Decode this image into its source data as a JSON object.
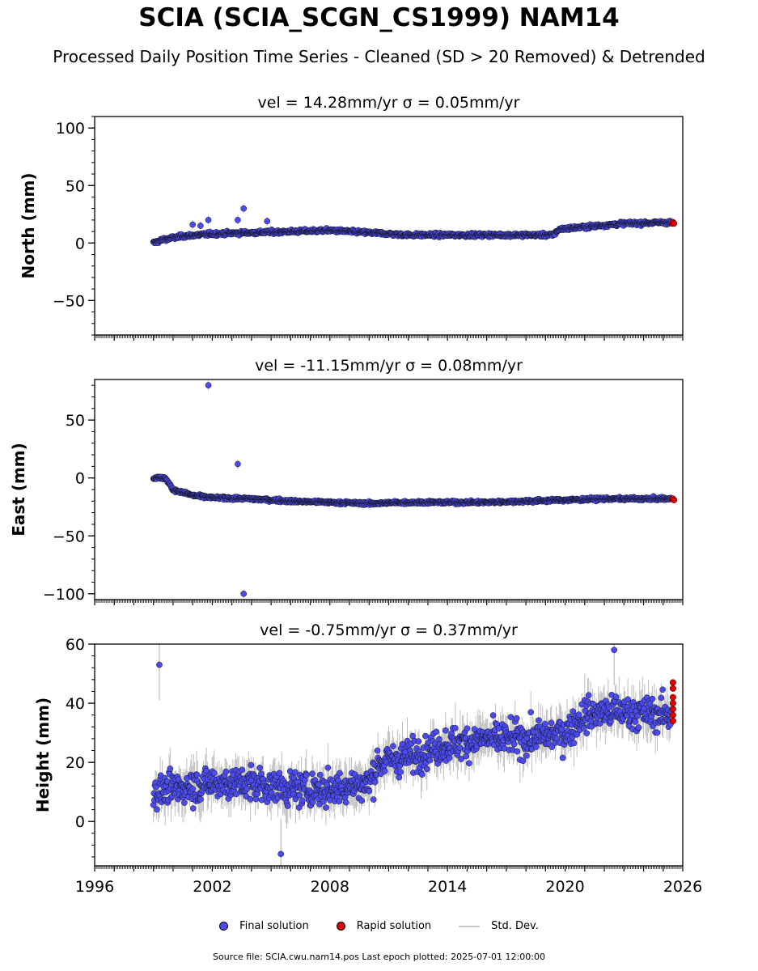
{
  "title": "SCIA (SCIA_SCGN_CS1999) NAM14",
  "subtitle": "Processed Daily Position Time Series - Cleaned (SD > 20 Removed) & Detrended",
  "legend": {
    "final_label": "Final solution",
    "rapid_label": "Rapid solution",
    "std_label": "Std. Dev."
  },
  "footer": "Source file: SCIA.cwu.nam14.pos  Last epoch plotted: 2025-07-01 12:00:00",
  "colors": {
    "final": "#4b4bf0",
    "rapid": "#e00000",
    "std": "#b0b0b0",
    "edge": "#000000"
  },
  "chart_data": [
    {
      "type": "scatter",
      "panel": "north",
      "title": "vel = 14.28mm/yr   σ = 0.05mm/yr",
      "ylabel": "North (mm)",
      "xlim": [
        1996,
        2026
      ],
      "ylim": [
        -80,
        110
      ],
      "yticks": [
        -50,
        0,
        50,
        100
      ],
      "xticks": [
        1996,
        2002,
        2008,
        2014,
        2020,
        2026
      ],
      "x_tick_labels_shown": false,
      "trend": [
        [
          1999.0,
          0
        ],
        [
          1999.5,
          3
        ],
        [
          2000.5,
          6
        ],
        [
          2002.0,
          8
        ],
        [
          2004.0,
          9
        ],
        [
          2006.0,
          10
        ],
        [
          2008.0,
          11
        ],
        [
          2010.0,
          9
        ],
        [
          2012.0,
          7
        ],
        [
          2014.0,
          7
        ],
        [
          2016.0,
          7
        ],
        [
          2018.0,
          7
        ],
        [
          2019.4,
          7
        ],
        [
          2019.7,
          12
        ],
        [
          2021.0,
          14
        ],
        [
          2023.0,
          17
        ],
        [
          2025.5,
          18
        ]
      ],
      "noise": 1.8,
      "err": 2,
      "outliers": [
        [
          2001.8,
          20
        ],
        [
          2003.3,
          20
        ],
        [
          2003.6,
          30
        ],
        [
          2001.0,
          16
        ],
        [
          2001.4,
          15
        ],
        [
          2004.8,
          19
        ]
      ],
      "rapid": [
        [
          2025.45,
          17
        ],
        [
          2025.5,
          18
        ],
        [
          2025.55,
          17
        ]
      ]
    },
    {
      "type": "scatter",
      "panel": "east",
      "title": "vel = -11.15mm/yr   σ = 0.08mm/yr",
      "ylabel": "East (mm)",
      "xlim": [
        1996,
        2026
      ],
      "ylim": [
        -105,
        85
      ],
      "yticks": [
        -100,
        -50,
        0,
        50
      ],
      "xticks": [
        1996,
        2002,
        2008,
        2014,
        2020,
        2026
      ],
      "x_tick_labels_shown": false,
      "trend": [
        [
          1999.0,
          0
        ],
        [
          1999.6,
          0
        ],
        [
          2000.0,
          -10
        ],
        [
          2001.0,
          -15
        ],
        [
          2002.0,
          -17
        ],
        [
          2004.0,
          -18
        ],
        [
          2006.0,
          -20
        ],
        [
          2008.0,
          -21
        ],
        [
          2010.0,
          -22
        ],
        [
          2012.0,
          -21
        ],
        [
          2014.0,
          -21
        ],
        [
          2016.0,
          -21
        ],
        [
          2018.0,
          -20
        ],
        [
          2020.0,
          -19
        ],
        [
          2022.0,
          -18
        ],
        [
          2025.5,
          -18
        ]
      ],
      "noise": 1.5,
      "err": 2,
      "outliers": [
        [
          2001.8,
          80
        ],
        [
          2003.3,
          12
        ],
        [
          2003.6,
          -100
        ]
      ],
      "rapid": [
        [
          2025.45,
          -18
        ],
        [
          2025.5,
          -18
        ],
        [
          2025.55,
          -19
        ]
      ]
    },
    {
      "type": "scatter",
      "panel": "height",
      "title": "vel = -0.75mm/yr   σ = 0.37mm/yr",
      "ylabel": "Height (mm)",
      "xlim": [
        1996,
        2026
      ],
      "ylim": [
        -15,
        60
      ],
      "yticks": [
        0,
        20,
        40,
        60
      ],
      "xticks": [
        1996,
        2002,
        2008,
        2014,
        2020,
        2026
      ],
      "x_tick_labels": [
        "1996",
        "2002",
        "2008",
        "2014",
        "2020",
        "2026"
      ],
      "x_tick_labels_shown": true,
      "trend": [
        [
          1999.0,
          10
        ],
        [
          2002.0,
          13
        ],
        [
          2004.0,
          13
        ],
        [
          2006.0,
          11
        ],
        [
          2008.0,
          11
        ],
        [
          2010.0,
          13
        ],
        [
          2010.5,
          20
        ],
        [
          2012.0,
          22
        ],
        [
          2014.0,
          26
        ],
        [
          2016.0,
          28
        ],
        [
          2018.0,
          28
        ],
        [
          2020.0,
          30
        ],
        [
          2021.0,
          36
        ],
        [
          2022.0,
          37
        ],
        [
          2023.0,
          37
        ],
        [
          2025.5,
          36
        ]
      ],
      "noise": 6.5,
      "err": 6,
      "outliers": [
        [
          1999.3,
          53
        ],
        [
          2022.5,
          58
        ],
        [
          2005.5,
          -11
        ]
      ],
      "rapid": [
        [
          2025.5,
          47
        ],
        [
          2025.5,
          45
        ],
        [
          2025.5,
          42
        ],
        [
          2025.5,
          40
        ],
        [
          2025.5,
          38
        ],
        [
          2025.5,
          36
        ],
        [
          2025.5,
          34
        ]
      ]
    }
  ]
}
